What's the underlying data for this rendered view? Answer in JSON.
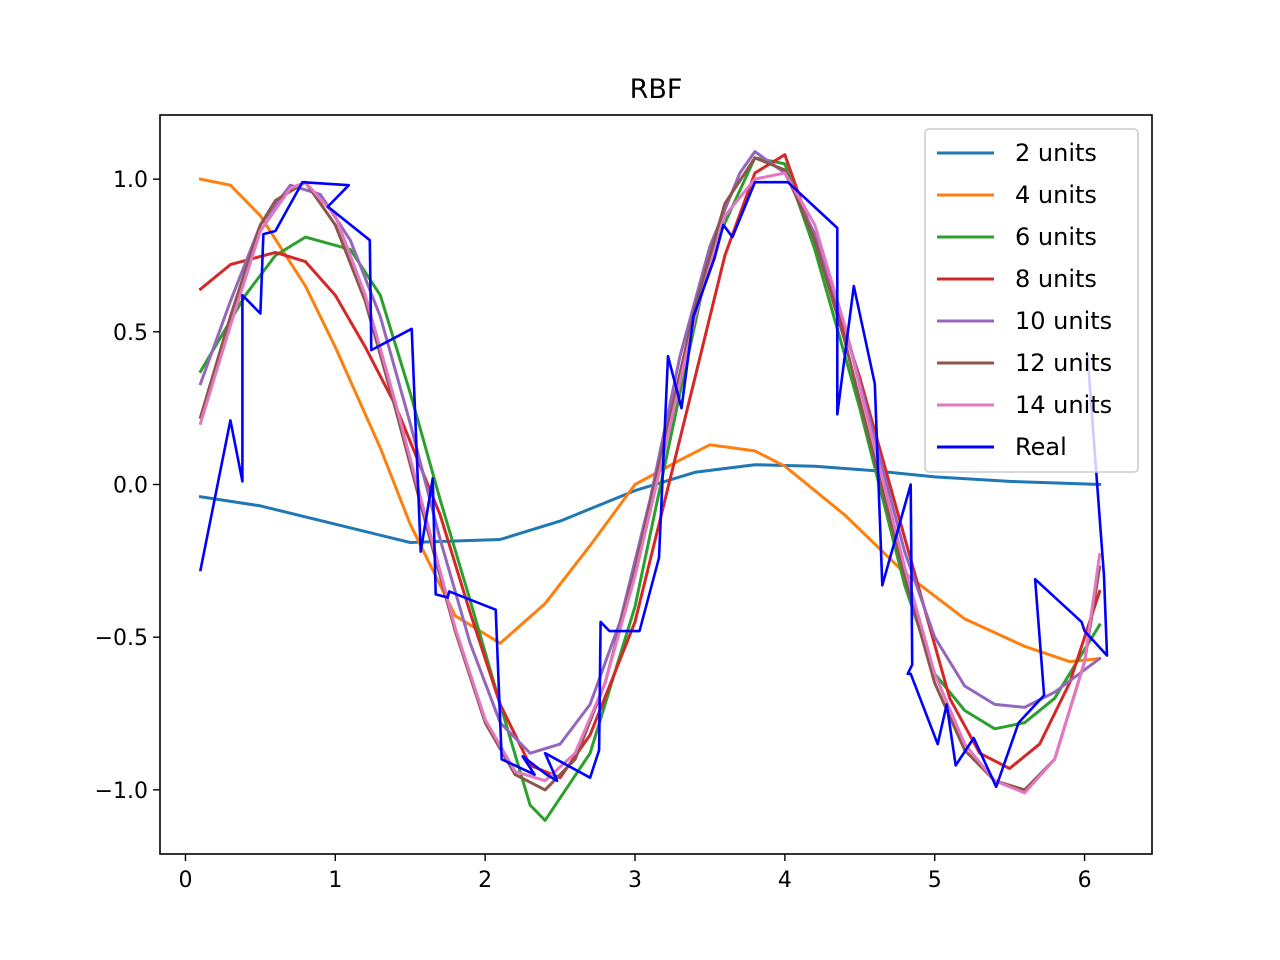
{
  "chart_data": {
    "type": "line",
    "title": "RBF",
    "xlabel": "",
    "ylabel": "",
    "xlim": [
      -0.17,
      6.45
    ],
    "ylim": [
      -1.21,
      1.21
    ],
    "xticks": [
      0,
      1,
      2,
      3,
      4,
      5,
      6
    ],
    "xtick_labels": [
      "0",
      "1",
      "2",
      "3",
      "4",
      "5",
      "6"
    ],
    "yticks": [
      -1.0,
      -0.5,
      0.0,
      0.5,
      1.0
    ],
    "ytick_labels": [
      "−1.0",
      "−0.5",
      "0.0",
      "0.5",
      "1.0"
    ],
    "grid": false,
    "legend_position": "upper right",
    "series": [
      {
        "name": "2 units",
        "color": "#1f77b4",
        "x": [
          0.1,
          0.5,
          1.0,
          1.5,
          2.1,
          2.5,
          3.0,
          3.4,
          3.8,
          4.2,
          4.6,
          5.0,
          5.5,
          6.1
        ],
        "y": [
          -0.04,
          -0.07,
          -0.13,
          -0.19,
          -0.18,
          -0.12,
          -0.02,
          0.04,
          0.065,
          0.06,
          0.045,
          0.025,
          0.01,
          0.0
        ]
      },
      {
        "name": "4 units",
        "color": "#ff7f0e",
        "x": [
          0.1,
          0.3,
          0.5,
          0.8,
          1.0,
          1.3,
          1.5,
          1.8,
          2.1,
          2.4,
          2.7,
          3.0,
          3.3,
          3.5,
          3.8,
          4.0,
          4.4,
          4.8,
          5.2,
          5.6,
          5.9,
          6.1
        ],
        "y": [
          1.0,
          0.98,
          0.88,
          0.65,
          0.45,
          0.12,
          -0.13,
          -0.43,
          -0.52,
          -0.39,
          -0.2,
          0.0,
          0.08,
          0.13,
          0.11,
          0.06,
          -0.1,
          -0.29,
          -0.44,
          -0.53,
          -0.58,
          -0.57
        ]
      },
      {
        "name": "6 units",
        "color": "#2ca02c",
        "x": [
          0.1,
          0.4,
          0.6,
          0.8,
          1.1,
          1.3,
          1.5,
          1.7,
          1.9,
          2.1,
          2.3,
          2.4,
          2.7,
          3.0,
          3.3,
          3.5,
          3.8,
          4.0,
          4.2,
          4.5,
          4.8,
          5.0,
          5.2,
          5.4,
          5.6,
          5.8,
          6.1
        ],
        "y": [
          0.37,
          0.62,
          0.75,
          0.81,
          0.77,
          0.62,
          0.3,
          -0.05,
          -0.38,
          -0.72,
          -1.05,
          -1.1,
          -0.88,
          -0.4,
          0.3,
          0.75,
          1.07,
          1.05,
          0.77,
          0.25,
          -0.33,
          -0.62,
          -0.74,
          -0.8,
          -0.78,
          -0.7,
          -0.46
        ]
      },
      {
        "name": "8 units",
        "color": "#d62728",
        "x": [
          0.1,
          0.3,
          0.6,
          0.8,
          1.0,
          1.2,
          1.4,
          1.7,
          1.9,
          2.1,
          2.3,
          2.5,
          2.7,
          3.0,
          3.2,
          3.4,
          3.6,
          3.8,
          4.0,
          4.2,
          4.5,
          4.7,
          4.9,
          5.1,
          5.3,
          5.5,
          5.7,
          5.9,
          6.1
        ],
        "y": [
          0.64,
          0.72,
          0.76,
          0.73,
          0.62,
          0.45,
          0.26,
          -0.1,
          -0.42,
          -0.72,
          -0.92,
          -0.96,
          -0.82,
          -0.45,
          -0.05,
          0.35,
          0.75,
          1.02,
          1.08,
          0.8,
          0.35,
          0.0,
          -0.35,
          -0.7,
          -0.88,
          -0.93,
          -0.85,
          -0.65,
          -0.35
        ]
      },
      {
        "name": "10 units",
        "color": "#9467bd",
        "x": [
          0.1,
          0.3,
          0.5,
          0.7,
          0.9,
          1.1,
          1.3,
          1.5,
          1.7,
          1.9,
          2.1,
          2.3,
          2.5,
          2.7,
          2.9,
          3.1,
          3.3,
          3.5,
          3.7,
          3.8,
          4.0,
          4.2,
          4.4,
          4.6,
          4.8,
          5.0,
          5.2,
          5.4,
          5.6,
          5.8,
          6.1
        ],
        "y": [
          0.33,
          0.6,
          0.85,
          0.98,
          0.95,
          0.8,
          0.55,
          0.2,
          -0.18,
          -0.52,
          -0.78,
          -0.88,
          -0.85,
          -0.72,
          -0.45,
          -0.05,
          0.42,
          0.78,
          1.02,
          1.09,
          1.02,
          0.82,
          0.52,
          0.15,
          -0.22,
          -0.5,
          -0.66,
          -0.72,
          -0.73,
          -0.68,
          -0.57
        ]
      },
      {
        "name": "12 units",
        "color": "#8c564b",
        "x": [
          0.1,
          0.3,
          0.5,
          0.6,
          0.8,
          1.0,
          1.2,
          1.4,
          1.6,
          1.8,
          2.0,
          2.2,
          2.4,
          2.6,
          2.8,
          3.0,
          3.2,
          3.4,
          3.6,
          3.8,
          4.0,
          4.2,
          4.4,
          4.6,
          4.8,
          5.0,
          5.2,
          5.4,
          5.6,
          5.8,
          6.0,
          6.1
        ],
        "y": [
          0.22,
          0.55,
          0.85,
          0.93,
          0.99,
          0.85,
          0.6,
          0.25,
          -0.12,
          -0.48,
          -0.78,
          -0.95,
          -1.0,
          -0.9,
          -0.65,
          -0.28,
          0.15,
          0.58,
          0.92,
          1.07,
          1.03,
          0.8,
          0.47,
          0.08,
          -0.3,
          -0.65,
          -0.87,
          -0.97,
          -1.0,
          -0.9,
          -0.58,
          -0.27
        ]
      },
      {
        "name": "14 units",
        "color": "#e377c2",
        "x": [
          0.1,
          0.3,
          0.5,
          0.7,
          0.8,
          1.0,
          1.2,
          1.4,
          1.6,
          1.8,
          2.0,
          2.2,
          2.4,
          2.6,
          2.8,
          3.0,
          3.2,
          3.4,
          3.6,
          3.8,
          4.0,
          4.2,
          4.4,
          4.6,
          4.8,
          5.0,
          5.2,
          5.4,
          5.6,
          5.8,
          6.0,
          6.1
        ],
        "y": [
          0.2,
          0.52,
          0.83,
          0.97,
          0.99,
          0.88,
          0.62,
          0.27,
          -0.1,
          -0.47,
          -0.77,
          -0.94,
          -0.97,
          -0.88,
          -0.65,
          -0.3,
          0.12,
          0.55,
          0.88,
          1.0,
          1.02,
          0.85,
          0.52,
          0.12,
          -0.27,
          -0.62,
          -0.85,
          -0.97,
          -1.01,
          -0.9,
          -0.58,
          -0.23
        ]
      },
      {
        "name": "Real",
        "color": "#0000ff",
        "x": [
          0.1,
          0.3,
          0.38,
          0.38,
          0.5,
          0.52,
          0.6,
          0.78,
          1.09,
          0.95,
          1.23,
          1.24,
          1.51,
          1.57,
          1.65,
          1.67,
          1.75,
          1.76,
          2.07,
          2.11,
          2.33,
          2.25,
          2.41,
          2.48,
          2.4,
          2.7,
          2.76,
          2.77,
          2.83,
          3.03,
          3.16,
          3.22,
          3.31,
          3.39,
          3.53,
          3.59,
          3.65,
          3.8,
          4.02,
          4.35,
          4.35,
          4.46,
          4.6,
          4.65,
          4.84,
          4.85,
          4.82,
          4.84,
          5.02,
          5.08,
          5.14,
          5.26,
          5.41,
          5.56,
          5.73,
          5.67,
          5.98,
          6.0,
          6.15,
          6.13,
          6.02
        ],
        "y": [
          -0.28,
          0.21,
          0.01,
          0.62,
          0.56,
          0.82,
          0.83,
          0.99,
          0.98,
          0.91,
          0.8,
          0.44,
          0.51,
          -0.22,
          0.02,
          -0.36,
          -0.37,
          -0.35,
          -0.41,
          -0.9,
          -0.95,
          -0.89,
          -0.95,
          -0.97,
          -0.88,
          -0.96,
          -0.87,
          -0.45,
          -0.48,
          -0.48,
          -0.24,
          0.42,
          0.25,
          0.55,
          0.74,
          0.85,
          0.81,
          0.99,
          0.99,
          0.84,
          0.23,
          0.65,
          0.33,
          -0.33,
          0.0,
          -0.59,
          -0.62,
          -0.62,
          -0.85,
          -0.72,
          -0.92,
          -0.83,
          -0.99,
          -0.78,
          -0.69,
          -0.31,
          -0.45,
          -0.48,
          -0.56,
          -0.3,
          0.42
        ]
      }
    ]
  }
}
